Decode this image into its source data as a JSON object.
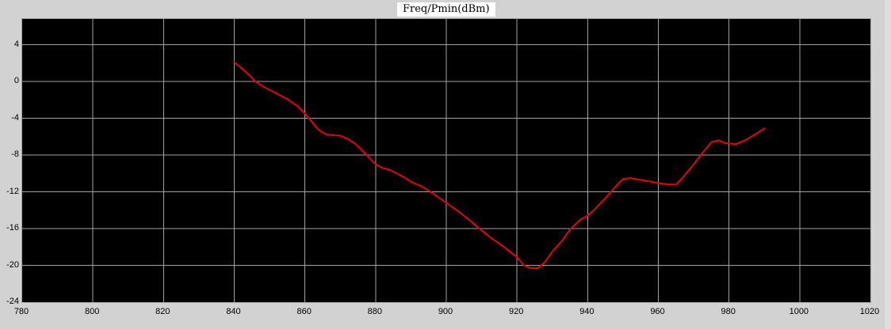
{
  "title": "Freq/Pmin(dBm)",
  "colors": {
    "background": "#d2d2d2",
    "plot_background": "#000000",
    "grid": "#a0a0a0",
    "line": "#ee0000",
    "title_background": "#ffffff",
    "text": "#000000"
  },
  "chart_data": {
    "type": "line",
    "title": "Freq/Pmin(dBm)",
    "xlabel": "",
    "ylabel": "",
    "xlim": [
      780,
      1020
    ],
    "ylim": [
      -24,
      6.8
    ],
    "grid": true,
    "legend": "none",
    "x_ticks": [
      780,
      800,
      820,
      840,
      860,
      880,
      900,
      920,
      940,
      960,
      980,
      1000,
      1020
    ],
    "y_ticks": [
      4,
      0,
      -4,
      -8,
      -12,
      -16,
      -20,
      -24
    ],
    "series": [
      {
        "name": "Pmin",
        "color": "#ee0000",
        "points": [
          [
            840,
            2.1
          ],
          [
            842,
            1.5
          ],
          [
            844,
            0.8
          ],
          [
            846,
            0.0
          ],
          [
            848,
            -0.5
          ],
          [
            850,
            -0.9
          ],
          [
            852,
            -1.3
          ],
          [
            855,
            -1.9
          ],
          [
            858,
            -2.7
          ],
          [
            860,
            -3.5
          ],
          [
            862,
            -4.4
          ],
          [
            864,
            -5.3
          ],
          [
            866,
            -5.75
          ],
          [
            868,
            -5.85
          ],
          [
            870,
            -5.9
          ],
          [
            872,
            -6.2
          ],
          [
            874,
            -6.7
          ],
          [
            876,
            -7.4
          ],
          [
            878,
            -8.2
          ],
          [
            880,
            -9.0
          ],
          [
            882,
            -9.4
          ],
          [
            884,
            -9.6
          ],
          [
            886,
            -10.0
          ],
          [
            888,
            -10.4
          ],
          [
            890,
            -10.9
          ],
          [
            893,
            -11.4
          ],
          [
            896,
            -12.1
          ],
          [
            900,
            -13.2
          ],
          [
            903,
            -14.0
          ],
          [
            906,
            -14.9
          ],
          [
            910,
            -16.2
          ],
          [
            913,
            -17.1
          ],
          [
            916,
            -17.9
          ],
          [
            918,
            -18.5
          ],
          [
            920,
            -19.1
          ],
          [
            922,
            -20.0
          ],
          [
            924,
            -20.3
          ],
          [
            926,
            -20.3
          ],
          [
            928,
            -19.6
          ],
          [
            930,
            -18.5
          ],
          [
            933,
            -17.2
          ],
          [
            935,
            -16.1
          ],
          [
            938,
            -15.0
          ],
          [
            940,
            -14.6
          ],
          [
            942,
            -13.9
          ],
          [
            945,
            -12.7
          ],
          [
            948,
            -11.4
          ],
          [
            950,
            -10.6
          ],
          [
            952,
            -10.5
          ],
          [
            955,
            -10.7
          ],
          [
            958,
            -10.9
          ],
          [
            961,
            -11.1
          ],
          [
            963,
            -11.2
          ],
          [
            965,
            -11.2
          ],
          [
            967,
            -10.4
          ],
          [
            970,
            -9.0
          ],
          [
            972,
            -8.0
          ],
          [
            975,
            -6.6
          ],
          [
            977,
            -6.4
          ],
          [
            979,
            -6.7
          ],
          [
            982,
            -6.8
          ],
          [
            985,
            -6.3
          ],
          [
            988,
            -5.6
          ],
          [
            990,
            -5.1
          ]
        ]
      }
    ]
  }
}
